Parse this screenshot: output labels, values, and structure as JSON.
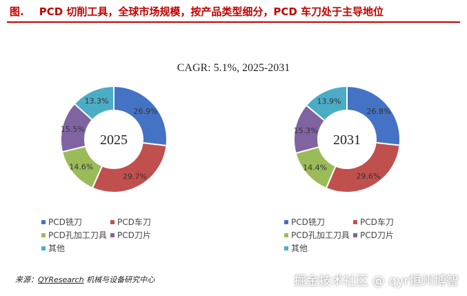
{
  "header": {
    "figure_label": "图.",
    "title": "PCD 切削工具，全球市场规模，按产品类型细分，PCD 车刀处于主导地位"
  },
  "cagr_text": "CAGR:   5.1%, 2025-2031",
  "colors": {
    "title": "#C00000",
    "segments": [
      "#4472C4",
      "#C0504D",
      "#9BBB59",
      "#8064A2",
      "#4BACC6"
    ]
  },
  "chart_data": [
    {
      "type": "pie",
      "center_label": "2025",
      "categories": [
        "PCD铣刀",
        "PCD车刀",
        "PCD孔加工刀具",
        "PCD刀片",
        "其他"
      ],
      "values": [
        26.9,
        29.7,
        14.6,
        15.5,
        13.3
      ],
      "data_labels": [
        "26.9%",
        "29.7%",
        "14.6%",
        "15.5%",
        "13.3%"
      ],
      "legend": [
        "PCD铣刀",
        "PCD车刀",
        "PCD孔加工刀具",
        "PCD刀片",
        "其他"
      ]
    },
    {
      "type": "pie",
      "center_label": "2031",
      "categories": [
        "PCD铣刀",
        "PCD车刀",
        "PCD孔加工刀具",
        "PCD刀片",
        "其他"
      ],
      "values": [
        26.8,
        29.6,
        14.4,
        15.3,
        13.9
      ],
      "data_labels": [
        "26.8%",
        "29.6%",
        "14.4%",
        "15.3%",
        "13.9%"
      ],
      "legend": [
        "PCD铣刀",
        "PCD车刀",
        "PCD孔加工刀具",
        "PCD刀片",
        "其他"
      ]
    }
  ],
  "footer": {
    "source_prefix": "来源：",
    "source_brand": "QYResearch",
    "source_suffix": " 机械与设备研究中心",
    "credit": "掘金技术社区 @ qyr恒州博智"
  }
}
